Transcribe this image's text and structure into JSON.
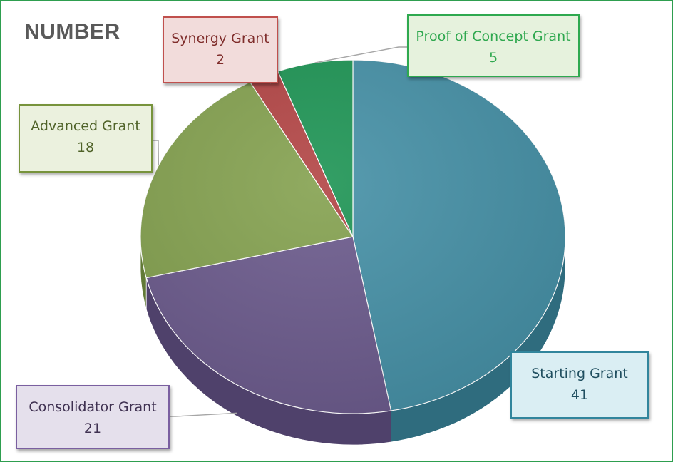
{
  "chart_data": {
    "type": "pie",
    "title": "NUMBER",
    "slices": [
      {
        "label": "Starting Grant",
        "value": 41,
        "color": "#4590a6",
        "side": "#2f6c7e",
        "label_fill": "#daeef3",
        "label_border": "#31859c",
        "label_text": "#1f4e5f"
      },
      {
        "label": "Consolidator Grant",
        "value": 21,
        "color": "#6b5a8c",
        "side": "#4f416b",
        "label_fill": "#e5e0ec",
        "label_border": "#7a5fa0",
        "label_text": "#3f3151"
      },
      {
        "label": "Advanced Grant",
        "value": 18,
        "color": "#84a14f",
        "side": "#627a37",
        "label_fill": "#ebf1de",
        "label_border": "#77933c",
        "label_text": "#4f6228"
      },
      {
        "label": "Synergy Grant",
        "value": 2,
        "color": "#b24444",
        "side": "#7f2f2f",
        "label_fill": "#f2dcdb",
        "label_border": "#c0504d",
        "label_text": "#7f2d2b"
      },
      {
        "label": "Proof of Concept Grant",
        "value": 5,
        "color": "#1d9454",
        "side": "#136e3d",
        "label_fill": "#e6f2dd",
        "label_border": "#2ea94f",
        "label_text": "#2fa84f"
      }
    ],
    "legend": "none"
  }
}
